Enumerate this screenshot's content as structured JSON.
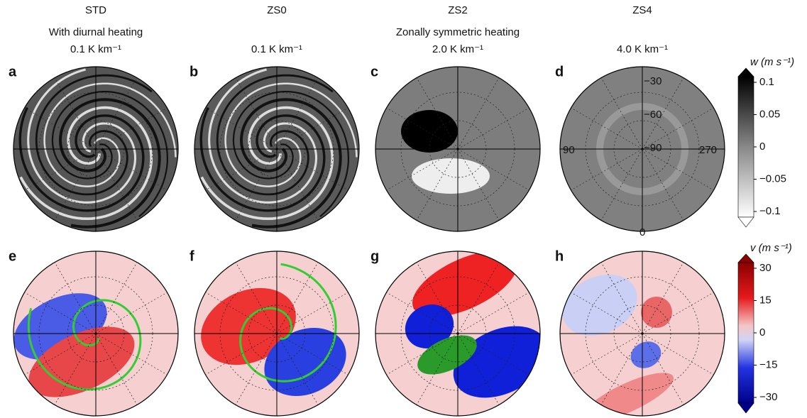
{
  "columns": [
    {
      "title": "STD",
      "subtitle": "With diurnal heating",
      "rate": "0.1 K km⁻¹"
    },
    {
      "title": "ZS0",
      "rate": "0.1 K km⁻¹"
    },
    {
      "title": "ZS2",
      "subtitle": "Zonally symmetric heating",
      "rate": "2.0 K km⁻¹"
    },
    {
      "title": "ZS4",
      "rate": "4.0 K km⁻¹"
    }
  ],
  "panels": [
    "a",
    "b",
    "c",
    "d",
    "e",
    "f",
    "g",
    "h"
  ],
  "panel_d_labels": {
    "latitudes": [
      "−30",
      "−60",
      "−90"
    ],
    "left": "90",
    "right": "270",
    "bottom": "0"
  },
  "colorbars": [
    {
      "label": "w (m s⁻¹)",
      "ticks": [
        "0.1",
        "0.05",
        "0",
        "−0.05",
        "−0.1"
      ]
    },
    {
      "label": "v (m s⁻¹)",
      "ticks": [
        "30",
        "15",
        "0",
        "−15",
        "−30"
      ]
    }
  ]
}
